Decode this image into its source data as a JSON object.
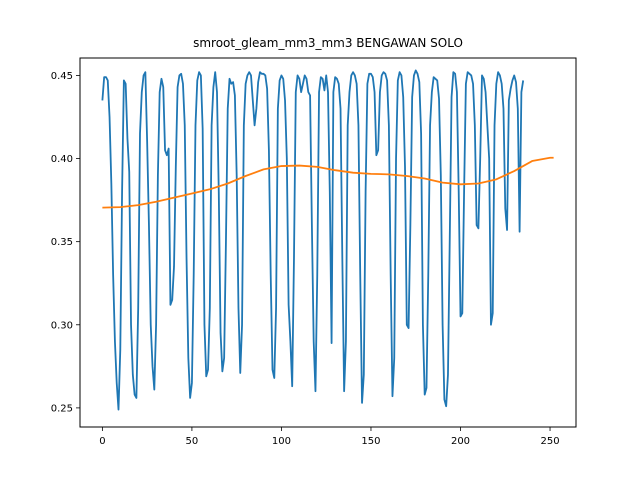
{
  "chart_data": {
    "type": "line",
    "title": "smroot_gleam_mm3_mm3 BENGAWAN SOLO",
    "xlabel": "",
    "ylabel": "",
    "xlim": [
      -12.5,
      264.5
    ],
    "ylim": [
      0.2385,
      0.4605
    ],
    "xticks": [
      0,
      50,
      100,
      150,
      200,
      250
    ],
    "xtick_labels": [
      "0",
      "50",
      "100",
      "150",
      "200",
      "250"
    ],
    "yticks": [
      0.25,
      0.3,
      0.35,
      0.4,
      0.45
    ],
    "ytick_labels": [
      "0.25",
      "0.30",
      "0.35",
      "0.40",
      "0.45"
    ],
    "grid": false,
    "series": [
      {
        "color": "#1f77b4",
        "points": [
          [
            0,
            0.435
          ],
          [
            1,
            0.449
          ],
          [
            2,
            0.449
          ],
          [
            3,
            0.447
          ],
          [
            4,
            0.425
          ],
          [
            5,
            0.385
          ],
          [
            6,
            0.33
          ],
          [
            7,
            0.29
          ],
          [
            8,
            0.265
          ],
          [
            9,
            0.249
          ],
          [
            10,
            0.285
          ],
          [
            11,
            0.38
          ],
          [
            12,
            0.447
          ],
          [
            13,
            0.445
          ],
          [
            14,
            0.412
          ],
          [
            15,
            0.392
          ],
          [
            16,
            0.3
          ],
          [
            17,
            0.27
          ],
          [
            18,
            0.258
          ],
          [
            19,
            0.256
          ],
          [
            20,
            0.31
          ],
          [
            21,
            0.415
          ],
          [
            22,
            0.44
          ],
          [
            23,
            0.45
          ],
          [
            24,
            0.452
          ],
          [
            25,
            0.41
          ],
          [
            26,
            0.36
          ],
          [
            27,
            0.3
          ],
          [
            28,
            0.275
          ],
          [
            29,
            0.261
          ],
          [
            30,
            0.3
          ],
          [
            31,
            0.39
          ],
          [
            32,
            0.44
          ],
          [
            33,
            0.448
          ],
          [
            34,
            0.443
          ],
          [
            35,
            0.405
          ],
          [
            36,
            0.402
          ],
          [
            37,
            0.406
          ],
          [
            38,
            0.312
          ],
          [
            39,
            0.315
          ],
          [
            40,
            0.335
          ],
          [
            41,
            0.395
          ],
          [
            42,
            0.443
          ],
          [
            43,
            0.45
          ],
          [
            44,
            0.451
          ],
          [
            45,
            0.445
          ],
          [
            46,
            0.42
          ],
          [
            47,
            0.34
          ],
          [
            48,
            0.28
          ],
          [
            49,
            0.256
          ],
          [
            50,
            0.265
          ],
          [
            51,
            0.33
          ],
          [
            52,
            0.42
          ],
          [
            53,
            0.447
          ],
          [
            54,
            0.452
          ],
          [
            55,
            0.45
          ],
          [
            56,
            0.418
          ],
          [
            57,
            0.3
          ],
          [
            58,
            0.269
          ],
          [
            59,
            0.273
          ],
          [
            60,
            0.31
          ],
          [
            61,
            0.42
          ],
          [
            62,
            0.443
          ],
          [
            63,
            0.452
          ],
          [
            64,
            0.44
          ],
          [
            65,
            0.38
          ],
          [
            66,
            0.295
          ],
          [
            67,
            0.272
          ],
          [
            68,
            0.28
          ],
          [
            69,
            0.35
          ],
          [
            70,
            0.43
          ],
          [
            71,
            0.448
          ],
          [
            72,
            0.445
          ],
          [
            73,
            0.446
          ],
          [
            74,
            0.438
          ],
          [
            75,
            0.39
          ],
          [
            76,
            0.31
          ],
          [
            77,
            0.271
          ],
          [
            78,
            0.3
          ],
          [
            79,
            0.42
          ],
          [
            80,
            0.445
          ],
          [
            81,
            0.45
          ],
          [
            82,
            0.452
          ],
          [
            83,
            0.45
          ],
          [
            84,
            0.435
          ],
          [
            85,
            0.42
          ],
          [
            86,
            0.43
          ],
          [
            87,
            0.446
          ],
          [
            88,
            0.452
          ],
          [
            89,
            0.451
          ],
          [
            90,
            0.451
          ],
          [
            91,
            0.45
          ],
          [
            92,
            0.442
          ],
          [
            93,
            0.405
          ],
          [
            94,
            0.33
          ],
          [
            95,
            0.273
          ],
          [
            96,
            0.268
          ],
          [
            97,
            0.31
          ],
          [
            98,
            0.43
          ],
          [
            99,
            0.447
          ],
          [
            100,
            0.45
          ],
          [
            101,
            0.448
          ],
          [
            102,
            0.435
          ],
          [
            103,
            0.4
          ],
          [
            104,
            0.312
          ],
          [
            105,
            0.29
          ],
          [
            106,
            0.263
          ],
          [
            107,
            0.34
          ],
          [
            108,
            0.44
          ],
          [
            109,
            0.45
          ],
          [
            110,
            0.448
          ],
          [
            111,
            0.44
          ],
          [
            112,
            0.445
          ],
          [
            113,
            0.45
          ],
          [
            114,
            0.448
          ],
          [
            115,
            0.44
          ],
          [
            116,
            0.438
          ],
          [
            117,
            0.36
          ],
          [
            118,
            0.29
          ],
          [
            119,
            0.26
          ],
          [
            120,
            0.33
          ],
          [
            121,
            0.44
          ],
          [
            122,
            0.449
          ],
          [
            123,
            0.448
          ],
          [
            124,
            0.441
          ],
          [
            125,
            0.45
          ],
          [
            126,
            0.44
          ],
          [
            127,
            0.38
          ],
          [
            128,
            0.289
          ],
          [
            129,
            0.44
          ],
          [
            130,
            0.449
          ],
          [
            131,
            0.448
          ],
          [
            132,
            0.445
          ],
          [
            133,
            0.43
          ],
          [
            134,
            0.34
          ],
          [
            135,
            0.26
          ],
          [
            136,
            0.29
          ],
          [
            137,
            0.42
          ],
          [
            138,
            0.44
          ],
          [
            139,
            0.45
          ],
          [
            140,
            0.452
          ],
          [
            141,
            0.45
          ],
          [
            142,
            0.445
          ],
          [
            143,
            0.42
          ],
          [
            144,
            0.33
          ],
          [
            145,
            0.253
          ],
          [
            146,
            0.27
          ],
          [
            147,
            0.38
          ],
          [
            148,
            0.445
          ],
          [
            149,
            0.451
          ],
          [
            150,
            0.451
          ],
          [
            151,
            0.449
          ],
          [
            152,
            0.44
          ],
          [
            153,
            0.402
          ],
          [
            154,
            0.405
          ],
          [
            155,
            0.44
          ],
          [
            156,
            0.45
          ],
          [
            157,
            0.452
          ],
          [
            158,
            0.451
          ],
          [
            159,
            0.447
          ],
          [
            160,
            0.42
          ],
          [
            161,
            0.33
          ],
          [
            162,
            0.257
          ],
          [
            163,
            0.28
          ],
          [
            164,
            0.4
          ],
          [
            165,
            0.447
          ],
          [
            166,
            0.452
          ],
          [
            167,
            0.45
          ],
          [
            168,
            0.437
          ],
          [
            169,
            0.395
          ],
          [
            170,
            0.3
          ],
          [
            171,
            0.298
          ],
          [
            172,
            0.36
          ],
          [
            173,
            0.437
          ],
          [
            174,
            0.45
          ],
          [
            175,
            0.453
          ],
          [
            176,
            0.451
          ],
          [
            177,
            0.446
          ],
          [
            178,
            0.415
          ],
          [
            179,
            0.3
          ],
          [
            180,
            0.258
          ],
          [
            181,
            0.262
          ],
          [
            182,
            0.33
          ],
          [
            183,
            0.42
          ],
          [
            184,
            0.44
          ],
          [
            185,
            0.449
          ],
          [
            186,
            0.448
          ],
          [
            187,
            0.447
          ],
          [
            188,
            0.436
          ],
          [
            189,
            0.39
          ],
          [
            190,
            0.3
          ],
          [
            191,
            0.255
          ],
          [
            192,
            0.251
          ],
          [
            193,
            0.27
          ],
          [
            194,
            0.352
          ],
          [
            195,
            0.437
          ],
          [
            196,
            0.452
          ],
          [
            197,
            0.451
          ],
          [
            198,
            0.44
          ],
          [
            199,
            0.38
          ],
          [
            200,
            0.305
          ],
          [
            201,
            0.307
          ],
          [
            202,
            0.38
          ],
          [
            203,
            0.445
          ],
          [
            204,
            0.452
          ],
          [
            205,
            0.451
          ],
          [
            206,
            0.45
          ],
          [
            207,
            0.445
          ],
          [
            208,
            0.42
          ],
          [
            209,
            0.36
          ],
          [
            210,
            0.358
          ],
          [
            211,
            0.4
          ],
          [
            212,
            0.45
          ],
          [
            213,
            0.448
          ],
          [
            214,
            0.44
          ],
          [
            215,
            0.42
          ],
          [
            216,
            0.4
          ],
          [
            217,
            0.3
          ],
          [
            218,
            0.307
          ],
          [
            219,
            0.42
          ],
          [
            220,
            0.445
          ],
          [
            221,
            0.452
          ],
          [
            222,
            0.45
          ],
          [
            223,
            0.445
          ],
          [
            224,
            0.43
          ],
          [
            225,
            0.37
          ],
          [
            226,
            0.357
          ],
          [
            227,
            0.435
          ],
          [
            228,
            0.442
          ],
          [
            229,
            0.447
          ],
          [
            230,
            0.45
          ],
          [
            231,
            0.446
          ],
          [
            232,
            0.43
          ],
          [
            233,
            0.356
          ],
          [
            234,
            0.44
          ],
          [
            235,
            0.447
          ]
        ]
      },
      {
        "color": "#ff7f0e",
        "points": [
          [
            0,
            0.3705
          ],
          [
            10,
            0.3708
          ],
          [
            20,
            0.372
          ],
          [
            30,
            0.374
          ],
          [
            40,
            0.3765
          ],
          [
            50,
            0.379
          ],
          [
            60,
            0.3815
          ],
          [
            70,
            0.385
          ],
          [
            80,
            0.3895
          ],
          [
            90,
            0.3935
          ],
          [
            100,
            0.3955
          ],
          [
            110,
            0.3958
          ],
          [
            120,
            0.395
          ],
          [
            130,
            0.393
          ],
          [
            140,
            0.3915
          ],
          [
            150,
            0.3908
          ],
          [
            160,
            0.3905
          ],
          [
            170,
            0.3895
          ],
          [
            180,
            0.388
          ],
          [
            190,
            0.3855
          ],
          [
            200,
            0.3845
          ],
          [
            210,
            0.385
          ],
          [
            220,
            0.3875
          ],
          [
            230,
            0.3925
          ],
          [
            240,
            0.3985
          ],
          [
            250,
            0.4005
          ],
          [
            252,
            0.4005
          ]
        ]
      }
    ]
  }
}
